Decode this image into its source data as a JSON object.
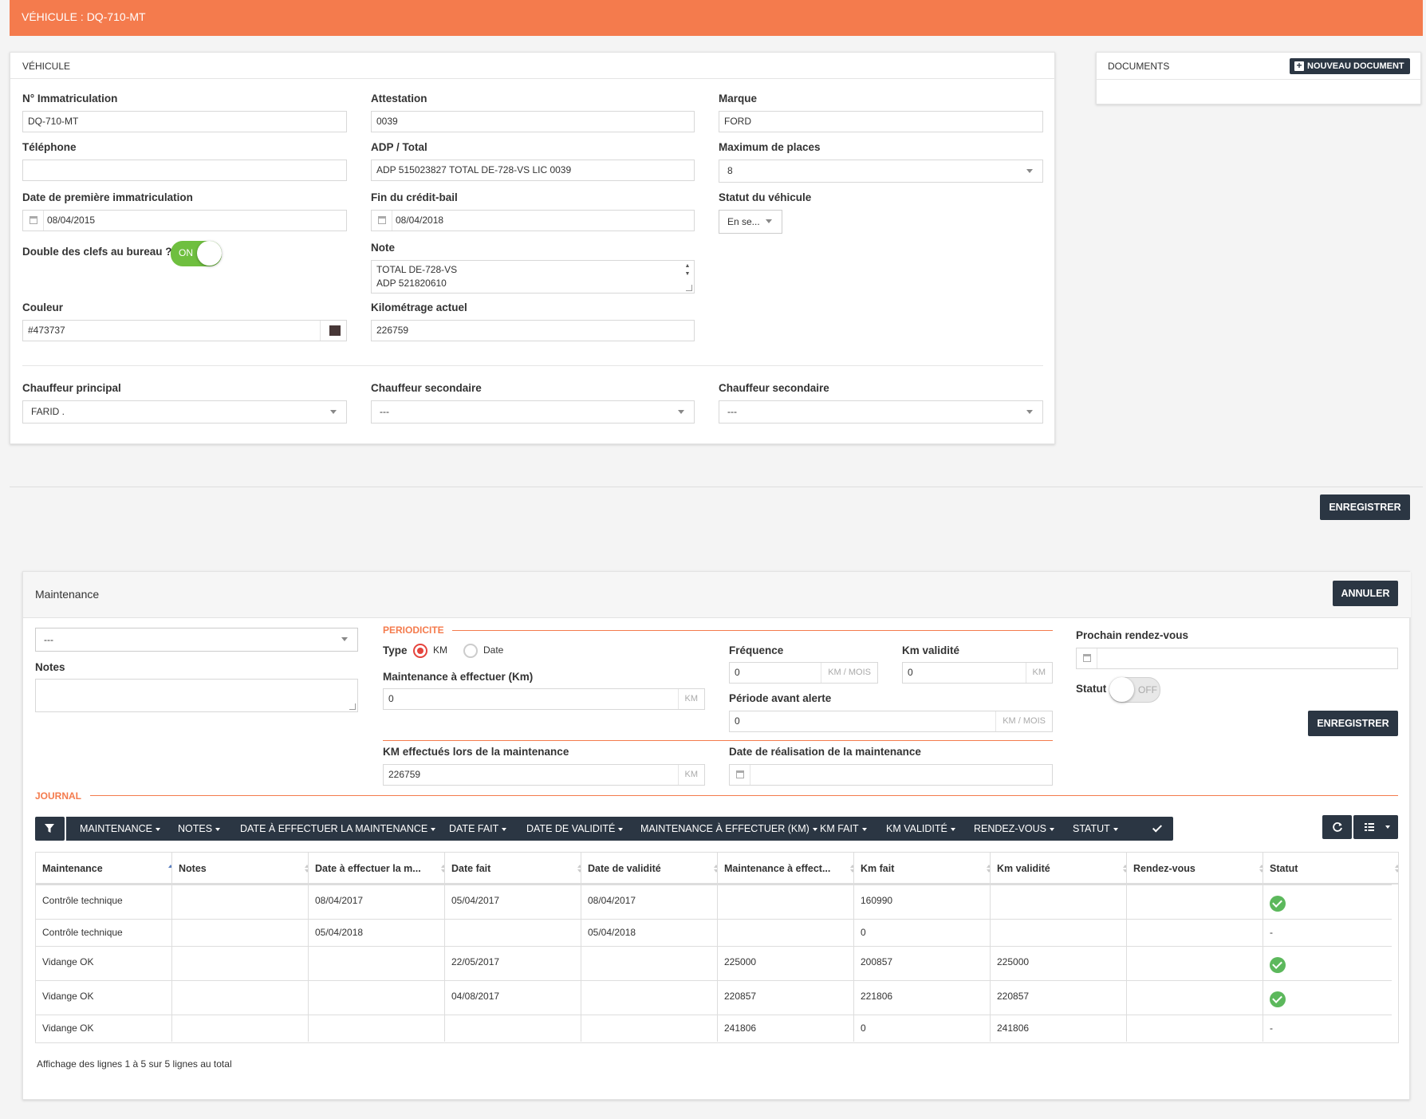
{
  "header": {
    "title": "VÉHICULE : DQ-710-MT"
  },
  "vehicle": {
    "panel_title": "VÉHICULE",
    "registration": {
      "label": "N° Immatriculation",
      "value": "DQ-710-MT"
    },
    "attestation": {
      "label": "Attestation",
      "value": "0039"
    },
    "brand": {
      "label": "Marque",
      "value": "FORD"
    },
    "phone": {
      "label": "Téléphone",
      "value": ""
    },
    "adp_total": {
      "label": "ADP / Total",
      "value": "ADP 515023827 TOTAL DE-728-VS  LIC 0039"
    },
    "max_seats": {
      "label": "Maximum de places",
      "value": "8"
    },
    "first_registration": {
      "label": "Date de première immatriculation",
      "value": "08/04/2015"
    },
    "lease_end": {
      "label": "Fin du crédit-bail",
      "value": "08/04/2018"
    },
    "status": {
      "label": "Statut du véhicule",
      "value": "En se..."
    },
    "double_keys": {
      "label": "Double des clefs au bureau ?",
      "state": "ON"
    },
    "note": {
      "label": "Note",
      "line1": "TOTAL DE-728-VS",
      "line2": "ADP 521820610"
    },
    "color": {
      "label": "Couleur",
      "value": "#473737",
      "swatch": "#473737"
    },
    "mileage": {
      "label": "Kilométrage actuel",
      "value": "226759"
    },
    "main_driver": {
      "label": "Chauffeur principal",
      "value": "FARID ."
    },
    "second_driver_1": {
      "label": "Chauffeur secondaire",
      "value": "---"
    },
    "second_driver_2": {
      "label": "Chauffeur secondaire",
      "value": "---"
    }
  },
  "documents": {
    "title": "DOCUMENTS",
    "new_button": "NOUVEAU DOCUMENT"
  },
  "save_button": "ENREGISTRER",
  "maintenance": {
    "title": "Maintenance",
    "cancel_button": "ANNULER",
    "select_value": "---",
    "notes_label": "Notes",
    "periodicity_label": "PERIODICITE",
    "type_label": "Type",
    "type_km": "KM",
    "type_date": "Date",
    "todo_km_label": "Maintenance à effectuer (Km)",
    "todo_km_value": "0",
    "frequency_label": "Fréquence",
    "frequency_value": "0",
    "unit_km_month": "KM / MOIS",
    "validity_km_label": "Km validité",
    "validity_km_value": "0",
    "unit_km": "KM",
    "alert_period_label": "Période avant alerte",
    "alert_period_value": "0",
    "done_km_label": "KM effectués lors de la maintenance",
    "done_km_value": "226759",
    "done_date_label": "Date de réalisation de la maintenance",
    "done_date_value": "",
    "next_appointment_label": "Prochain rendez-vous",
    "next_appointment_value": "",
    "status_label": "Statut",
    "status_state": "OFF",
    "save_button": "ENREGISTRER"
  },
  "journal": {
    "title": "JOURNAL",
    "toolbar": [
      "MAINTENANCE",
      "NOTES",
      "DATE À EFFECTUER LA MAINTENANCE",
      "DATE FAIT",
      "DATE DE VALIDITÉ",
      "MAINTENANCE À EFFECTUER (KM)",
      "KM FAIT",
      "KM VALIDITÉ",
      "RENDEZ-VOUS",
      "STATUT"
    ],
    "columns": [
      "Maintenance",
      "Notes",
      "Date à effectuer la m...",
      "Date fait",
      "Date de validité",
      "Maintenance à effect...",
      "Km fait",
      "Km validité",
      "Rendez-vous",
      "Statut"
    ],
    "rows": [
      {
        "c0": "Contrôle technique",
        "c1": "",
        "c2": "08/04/2017",
        "c3": "05/04/2017",
        "c4": "08/04/2017",
        "c5": "",
        "c6": "160990",
        "c7": "",
        "c8": "",
        "status": "ok"
      },
      {
        "c0": "Contrôle technique",
        "c1": "",
        "c2": "05/04/2018",
        "c3": "",
        "c4": "05/04/2018",
        "c5": "",
        "c6": "0",
        "c7": "",
        "c8": "",
        "status": "-"
      },
      {
        "c0": "Vidange OK",
        "c1": "",
        "c2": "",
        "c3": "22/05/2017",
        "c4": "",
        "c5": "225000",
        "c6": "200857",
        "c7": "225000",
        "c8": "",
        "status": "ok"
      },
      {
        "c0": "Vidange OK",
        "c1": "",
        "c2": "",
        "c3": "04/08/2017",
        "c4": "",
        "c5": "220857",
        "c6": "221806",
        "c7": "220857",
        "c8": "",
        "status": "ok"
      },
      {
        "c0": "Vidange OK",
        "c1": "",
        "c2": "",
        "c3": "",
        "c4": "",
        "c5": "241806",
        "c6": "0",
        "c7": "241806",
        "c8": "",
        "status": "-"
      }
    ],
    "footer": "Affichage des lignes 1 à 5 sur 5 lignes au total"
  },
  "icons": {
    "filter": "filter-icon",
    "check": "check-icon",
    "refresh": "refresh-icon",
    "columns": "grid-icon",
    "calendar": "calendar-icon",
    "plus": "plus-icon",
    "status_ok": "check-circle-icon"
  }
}
